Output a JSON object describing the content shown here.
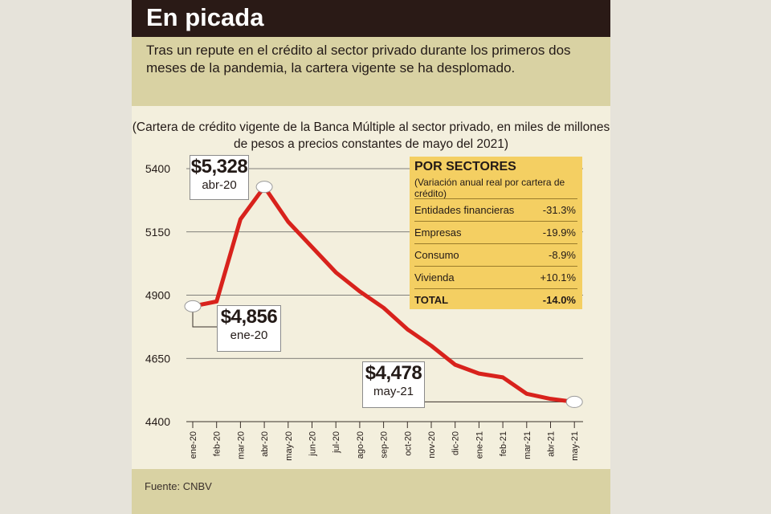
{
  "header": {
    "title": "En picada",
    "intro": "Tras un repute en el crédito al sector privado durante los primeros dos meses de la pandemia, la cartera vigente se ha desplomado."
  },
  "chart_note": "(Cartera de crédito vigente de la Banca Múltiple al sector privado, en miles de millones de pesos a precios constantes de mayo del 2021)",
  "callouts": {
    "peak": {
      "value": "$5,328",
      "label": "abr-20"
    },
    "start": {
      "value": "$4,856",
      "label": "ene-20"
    },
    "end": {
      "value": "$4,478",
      "label": "may-21"
    }
  },
  "sectors": {
    "title": "POR SECTORES",
    "subtitle": "(Variación anual real por cartera de crédito)",
    "rows": [
      {
        "label": "Entidades financieras",
        "value": "-31.3%"
      },
      {
        "label": "Empresas",
        "value": "-19.9%"
      },
      {
        "label": "Consumo",
        "value": "-8.9%"
      },
      {
        "label": "Vivienda",
        "value": "+10.1%"
      },
      {
        "label": "TOTAL",
        "value": "-14.0%"
      }
    ]
  },
  "source": "Fuente: CNBV",
  "colors": {
    "line": "#d8221c",
    "header": "#2a1a16",
    "panel": "#d9d2a3",
    "sector_box": "#f4cf62"
  },
  "chart_data": {
    "type": "line",
    "title": "",
    "xlabel": "",
    "ylabel": "",
    "categories": [
      "ene-20",
      "feb-20",
      "mar-20",
      "abr-20",
      "may-20",
      "jun-20",
      "jul-20",
      "ago-20",
      "sep-20",
      "oct-20",
      "nov-20",
      "dic-20",
      "ene-21",
      "feb-21",
      "mar-21",
      "abr-21",
      "may-21"
    ],
    "series": [
      {
        "values": [
          4856,
          4875,
          5200,
          5328,
          5190,
          5090,
          4990,
          4915,
          4850,
          4765,
          4700,
          4625,
          4590,
          4575,
          4510,
          4490,
          4478
        ]
      }
    ],
    "yticks": [
      4400,
      4650,
      4900,
      5150,
      5400
    ],
    "ylim": [
      4400,
      5400
    ],
    "grid": true
  }
}
